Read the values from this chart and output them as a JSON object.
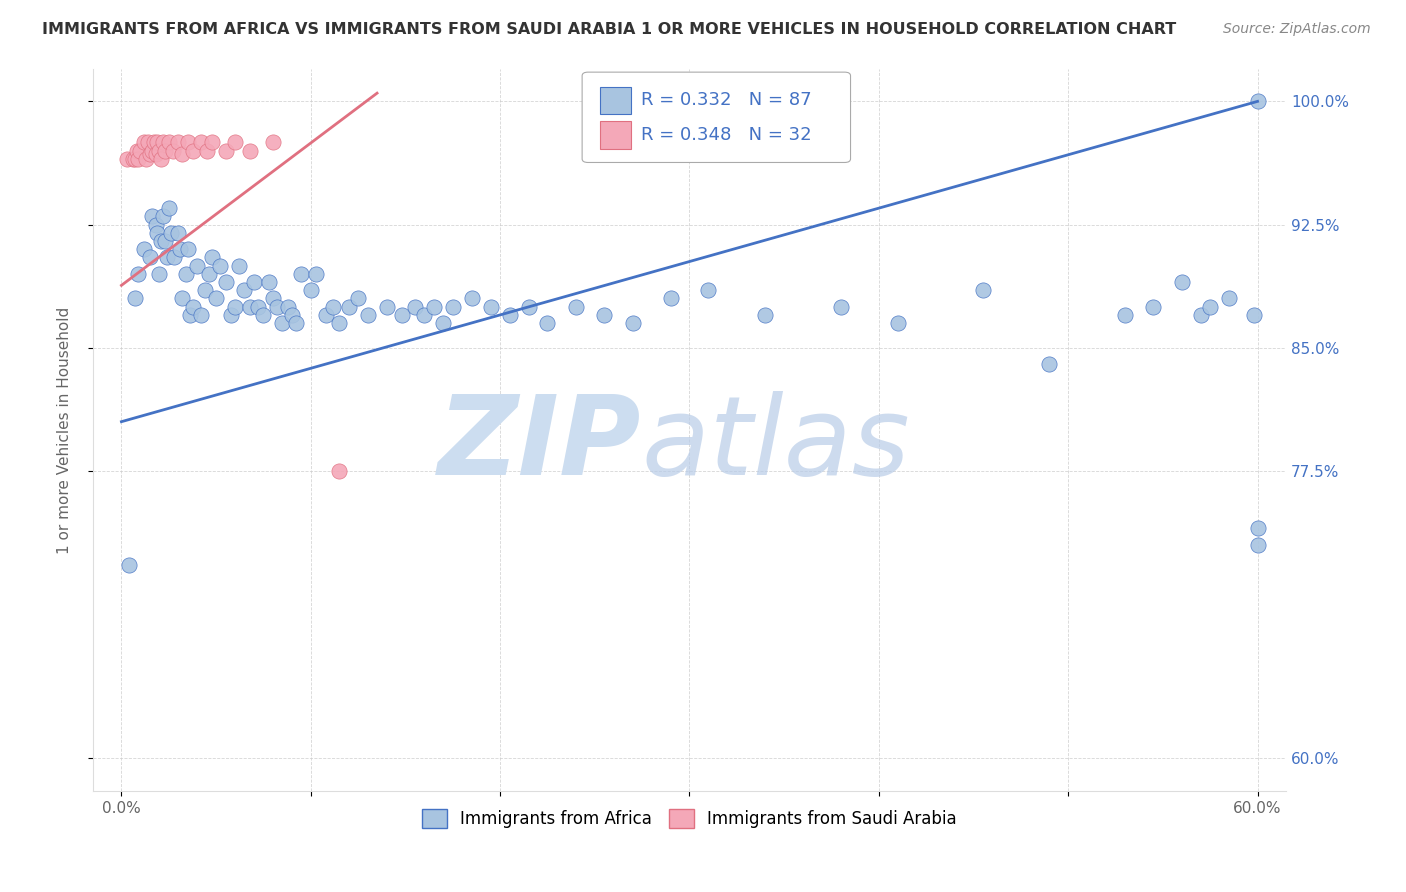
{
  "title": "IMMIGRANTS FROM AFRICA VS IMMIGRANTS FROM SAUDI ARABIA 1 OR MORE VEHICLES IN HOUSEHOLD CORRELATION CHART",
  "source": "Source: ZipAtlas.com",
  "ylabel": "1 or more Vehicles in Household",
  "legend_africa": "Immigrants from Africa",
  "legend_saudi": "Immigrants from Saudi Arabia",
  "R_africa": 0.332,
  "N_africa": 87,
  "R_saudi": 0.348,
  "N_saudi": 32,
  "color_africa": "#a8c4e0",
  "color_saudi": "#f4a8b8",
  "color_africa_line": "#4472c4",
  "color_saudi_line": "#e07080",
  "watermark_zip_color": "#c8d8f0",
  "watermark_atlas_color": "#b8d0f0",
  "grid_color": "#cccccc",
  "title_color": "#333333",
  "legend_r_color": "#4472c4",
  "xmin": 0.0,
  "xmax": 0.6,
  "ymin": 0.6,
  "ymax": 1.0,
  "africa_x": [
    0.004,
    0.007,
    0.009,
    0.012,
    0.015,
    0.016,
    0.018,
    0.019,
    0.02,
    0.021,
    0.022,
    0.023,
    0.024,
    0.025,
    0.026,
    0.028,
    0.03,
    0.031,
    0.032,
    0.034,
    0.035,
    0.036,
    0.038,
    0.04,
    0.042,
    0.044,
    0.046,
    0.048,
    0.05,
    0.052,
    0.055,
    0.058,
    0.06,
    0.062,
    0.065,
    0.068,
    0.07,
    0.072,
    0.075,
    0.078,
    0.08,
    0.082,
    0.085,
    0.088,
    0.09,
    0.092,
    0.095,
    0.1,
    0.103,
    0.108,
    0.112,
    0.115,
    0.12,
    0.125,
    0.13,
    0.14,
    0.148,
    0.155,
    0.16,
    0.165,
    0.17,
    0.175,
    0.185,
    0.195,
    0.205,
    0.215,
    0.225,
    0.24,
    0.255,
    0.27,
    0.29,
    0.31,
    0.34,
    0.38,
    0.41,
    0.455,
    0.49,
    0.53,
    0.545,
    0.56,
    0.57,
    0.575,
    0.585,
    0.598,
    0.6,
    0.6,
    0.6
  ],
  "africa_y": [
    0.718,
    0.88,
    0.895,
    0.91,
    0.905,
    0.93,
    0.925,
    0.92,
    0.895,
    0.915,
    0.93,
    0.915,
    0.905,
    0.935,
    0.92,
    0.905,
    0.92,
    0.91,
    0.88,
    0.895,
    0.91,
    0.87,
    0.875,
    0.9,
    0.87,
    0.885,
    0.895,
    0.905,
    0.88,
    0.9,
    0.89,
    0.87,
    0.875,
    0.9,
    0.885,
    0.875,
    0.89,
    0.875,
    0.87,
    0.89,
    0.88,
    0.875,
    0.865,
    0.875,
    0.87,
    0.865,
    0.895,
    0.885,
    0.895,
    0.87,
    0.875,
    0.865,
    0.875,
    0.88,
    0.87,
    0.875,
    0.87,
    0.875,
    0.87,
    0.875,
    0.865,
    0.875,
    0.88,
    0.875,
    0.87,
    0.875,
    0.865,
    0.875,
    0.87,
    0.865,
    0.88,
    0.885,
    0.87,
    0.875,
    0.865,
    0.885,
    0.84,
    0.87,
    0.875,
    0.89,
    0.87,
    0.875,
    0.88,
    0.87,
    0.74,
    0.73,
    1.0
  ],
  "saudi_x": [
    0.003,
    0.006,
    0.007,
    0.008,
    0.009,
    0.01,
    0.012,
    0.013,
    0.014,
    0.015,
    0.016,
    0.017,
    0.018,
    0.019,
    0.02,
    0.021,
    0.022,
    0.023,
    0.025,
    0.027,
    0.03,
    0.032,
    0.035,
    0.038,
    0.042,
    0.045,
    0.048,
    0.055,
    0.06,
    0.068,
    0.08,
    0.115
  ],
  "saudi_y": [
    0.965,
    0.965,
    0.965,
    0.97,
    0.965,
    0.97,
    0.975,
    0.965,
    0.975,
    0.968,
    0.97,
    0.975,
    0.968,
    0.975,
    0.97,
    0.965,
    0.975,
    0.97,
    0.975,
    0.97,
    0.975,
    0.968,
    0.975,
    0.97,
    0.975,
    0.97,
    0.975,
    0.97,
    0.975,
    0.97,
    0.975,
    0.775
  ],
  "blue_line_x": [
    0.0,
    0.6
  ],
  "blue_line_y": [
    0.805,
    1.0
  ],
  "pink_line_x": [
    0.0,
    0.135
  ],
  "pink_line_y": [
    0.888,
    1.005
  ]
}
